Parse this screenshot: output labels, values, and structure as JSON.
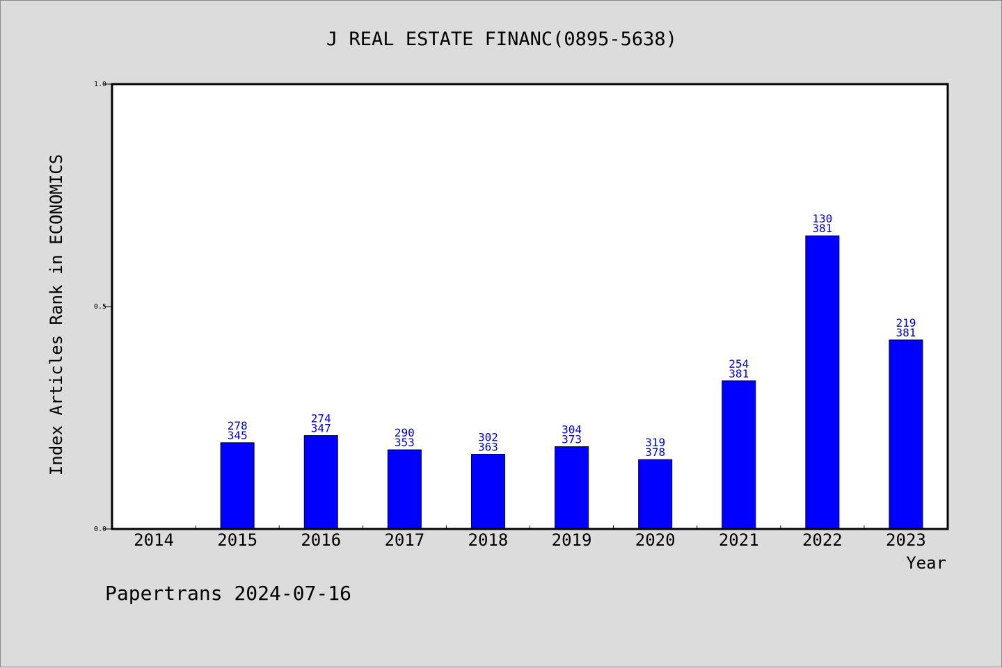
{
  "chart_data": {
    "type": "bar",
    "title": "J REAL ESTATE FINANC(0895-5638)",
    "xlabel": "Year",
    "ylabel": "Index Articles Rank in ECONOMICS",
    "ylim": [
      0,
      1
    ],
    "yticks": [
      "0.0",
      "0.5",
      "1.0"
    ],
    "categories": [
      "2014",
      "2015",
      "2016",
      "2017",
      "2018",
      "2019",
      "2020",
      "2021",
      "2022",
      "2023"
    ],
    "values": [
      null,
      0.194,
      0.21,
      0.178,
      0.168,
      0.185,
      0.156,
      0.333,
      0.659,
      0.425
    ],
    "rank_labels": [
      null,
      "278",
      "274",
      "290",
      "302",
      "304",
      "319",
      "254",
      "130",
      "219"
    ],
    "total_labels": [
      null,
      "345",
      "347",
      "353",
      "363",
      "373",
      "378",
      "381",
      "381",
      "381"
    ],
    "bar_color": "#0000ff",
    "label_color": "#0000cc",
    "grid": false,
    "legend": "none"
  },
  "footer": "Papertrans 2024-07-16"
}
